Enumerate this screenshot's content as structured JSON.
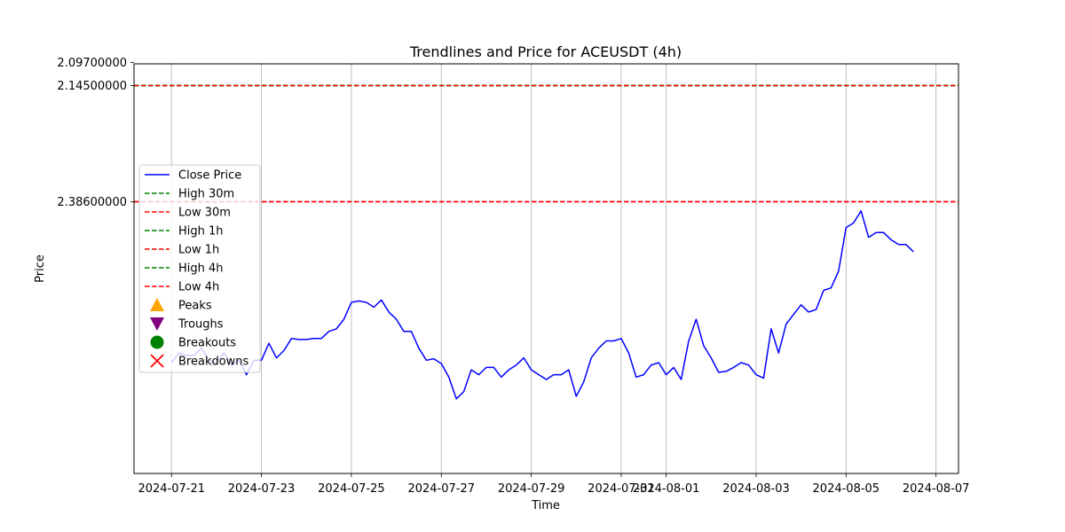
{
  "chart_data": {
    "type": "line",
    "title": "Trendlines and Price for ACEUSDT (4h)",
    "xlabel": "Time",
    "ylabel": "Price",
    "x_start": "2024-07-21",
    "x_step_hours": 4,
    "xlim": [
      "2024-07-20T04:00",
      "2024-08-07T12:00"
    ],
    "ylim": [
      2.1,
      2.95
    ],
    "x_ticks": [
      "2024-07-21",
      "2024-07-23",
      "2024-07-25",
      "2024-07-27",
      "2024-07-29",
      "2024-07-31",
      "2024-08-01",
      "2024-08-03",
      "2024-08-05",
      "2024-08-07"
    ],
    "y_ticks": [
      {
        "value": 2.386,
        "label": "2.38600000"
      },
      {
        "value": 2.145,
        "label": "2.14500000"
      },
      {
        "value": 2.097,
        "label": "2.09700000"
      }
    ],
    "grid": "vertical",
    "legend_position": "center-left",
    "series": [
      {
        "name": "Close Price",
        "color": "#0000ff",
        "style": "solid",
        "values": [
          2.72,
          2.7,
          2.705,
          2.705,
          2.69,
          2.715,
          2.72,
          2.7,
          2.725,
          2.715,
          2.745,
          2.715,
          2.715,
          2.68,
          2.71,
          2.695,
          2.67,
          2.672,
          2.672,
          2.67,
          2.67,
          2.655,
          2.65,
          2.63,
          2.595,
          2.592,
          2.595,
          2.605,
          2.59,
          2.615,
          2.63,
          2.655,
          2.655,
          2.69,
          2.715,
          2.712,
          2.722,
          2.75,
          2.795,
          2.78,
          2.735,
          2.745,
          2.73,
          2.73,
          2.75,
          2.735,
          2.725,
          2.71,
          2.735,
          2.745,
          2.755,
          2.745,
          2.745,
          2.735,
          2.79,
          2.76,
          2.71,
          2.69,
          2.675,
          2.675,
          2.67,
          2.7,
          2.75,
          2.745,
          2.725,
          2.72,
          2.745,
          2.73,
          2.755,
          2.675,
          2.63,
          2.685,
          2.71,
          2.74,
          2.738,
          2.73,
          2.72,
          2.725,
          2.745,
          2.752,
          2.65,
          2.7,
          2.64,
          2.62,
          2.6,
          2.615,
          2.61,
          2.57,
          2.565,
          2.53,
          2.44,
          2.43,
          2.405,
          2.46,
          2.45,
          2.45,
          2.465,
          2.475,
          2.475,
          2.49
        ]
      },
      {
        "name": "High 30m",
        "color": "#008000",
        "style": "dashed",
        "level": 2.145
      },
      {
        "name": "Low 30m",
        "color": "#ff0000",
        "style": "dashed",
        "level": 2.386
      },
      {
        "name": "High 1h",
        "color": "#008000",
        "style": "dashed",
        "level": 2.145
      },
      {
        "name": "Low 1h",
        "color": "#ff0000",
        "style": "dashed",
        "level": 2.386
      },
      {
        "name": "High 4h",
        "color": "#008000",
        "style": "dashed",
        "level": 2.145
      },
      {
        "name": "Low 4h",
        "color": "#ff0000",
        "style": "dashed",
        "level": 2.145
      },
      {
        "name": "Peaks",
        "color": "#ffa500",
        "marker": "triangle-up",
        "values": []
      },
      {
        "name": "Troughs",
        "color": "#800080",
        "marker": "triangle-down",
        "values": []
      },
      {
        "name": "Breakouts",
        "color": "#008000",
        "marker": "circle",
        "values": []
      },
      {
        "name": "Breakdowns",
        "color": "#ff0000",
        "marker": "x",
        "values": []
      }
    ]
  }
}
